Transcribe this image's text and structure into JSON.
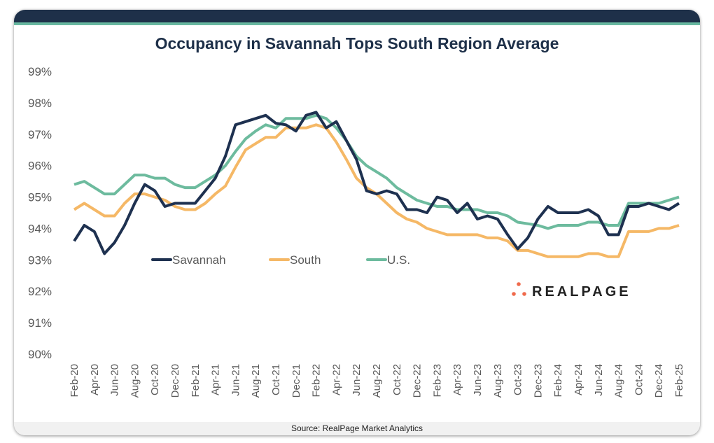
{
  "chart_data": {
    "type": "line",
    "title": "Occupancy in Savannah Tops South Region Average",
    "source": "Source: RealPage Market Analytics",
    "logo_text": "REALPAGE",
    "ylim": [
      90,
      99
    ],
    "y_ticks": [
      "90%",
      "91%",
      "92%",
      "93%",
      "94%",
      "95%",
      "96%",
      "97%",
      "98%",
      "99%"
    ],
    "x_ticks": [
      "Feb-20",
      "Apr-20",
      "Jun-20",
      "Aug-20",
      "Oct-20",
      "Dec-20",
      "Feb-21",
      "Apr-21",
      "Jun-21",
      "Aug-21",
      "Oct-21",
      "Dec-21",
      "Feb-22",
      "Apr-22",
      "Jun-22",
      "Aug-22",
      "Oct-22",
      "Dec-22",
      "Feb-23",
      "Apr-23",
      "Jun-23",
      "Aug-23",
      "Oct-23",
      "Dec-23",
      "Feb-24",
      "Apr-24",
      "Jun-24",
      "Aug-24",
      "Oct-24",
      "Dec-24",
      "Feb-25"
    ],
    "grid": false,
    "legend_placement": "center-left",
    "series": [
      {
        "name": "Savannah",
        "color": "#1e3150",
        "values": [
          93.6,
          94.1,
          93.9,
          93.2,
          93.55,
          94.1,
          94.8,
          95.4,
          95.2,
          94.7,
          94.8,
          94.8,
          94.8,
          95.2,
          95.6,
          96.3,
          97.3,
          97.4,
          97.5,
          97.6,
          97.35,
          97.3,
          97.1,
          97.6,
          97.7,
          97.2,
          97.4,
          96.8,
          96.2,
          95.2,
          95.1,
          95.2,
          95.1,
          94.6,
          94.6,
          94.5,
          95.0,
          94.9,
          94.5,
          94.8,
          94.3,
          94.4,
          94.3,
          93.8,
          93.35,
          93.7,
          94.3,
          94.7,
          94.5,
          94.5,
          94.5,
          94.6,
          94.4,
          93.8,
          93.8,
          94.7,
          94.7,
          94.8,
          94.7,
          94.6,
          94.8
        ]
      },
      {
        "name": "South",
        "color": "#f5b866",
        "values": [
          94.6,
          94.8,
          94.6,
          94.4,
          94.4,
          94.8,
          95.1,
          95.1,
          95.0,
          94.9,
          94.7,
          94.6,
          94.6,
          94.8,
          95.1,
          95.35,
          95.95,
          96.5,
          96.7,
          96.9,
          96.9,
          97.2,
          97.2,
          97.2,
          97.3,
          97.2,
          96.75,
          96.2,
          95.6,
          95.3,
          95.1,
          94.8,
          94.5,
          94.3,
          94.2,
          94.0,
          93.9,
          93.8,
          93.8,
          93.8,
          93.8,
          93.7,
          93.7,
          93.6,
          93.3,
          93.3,
          93.2,
          93.1,
          93.1,
          93.1,
          93.1,
          93.2,
          93.2,
          93.1,
          93.1,
          93.9,
          93.9,
          93.9,
          94.0,
          94.0,
          94.1
        ]
      },
      {
        "name": "U.S.",
        "color": "#6dbb9e",
        "values": [
          95.4,
          95.5,
          95.3,
          95.1,
          95.1,
          95.4,
          95.7,
          95.7,
          95.6,
          95.6,
          95.4,
          95.3,
          95.3,
          95.5,
          95.7,
          96.0,
          96.45,
          96.85,
          97.1,
          97.3,
          97.2,
          97.5,
          97.5,
          97.5,
          97.6,
          97.5,
          97.2,
          96.8,
          96.3,
          96.0,
          95.8,
          95.6,
          95.3,
          95.1,
          94.9,
          94.8,
          94.7,
          94.7,
          94.6,
          94.6,
          94.6,
          94.5,
          94.5,
          94.4,
          94.2,
          94.15,
          94.1,
          94.0,
          94.1,
          94.1,
          94.1,
          94.2,
          94.2,
          94.1,
          94.1,
          94.8,
          94.8,
          94.8,
          94.8,
          94.9,
          95.0
        ]
      }
    ]
  }
}
